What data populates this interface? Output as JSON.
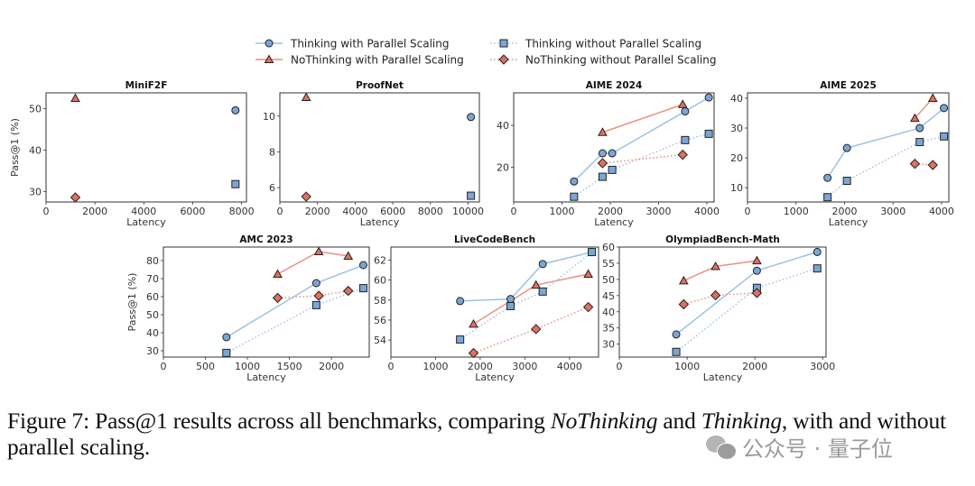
{
  "legend": [
    {
      "key": "twp",
      "label": "Thinking with Parallel Scaling",
      "color": "#7aa6d6",
      "line_color": "#9ec1e3",
      "marker": "circle",
      "style": "solid"
    },
    {
      "key": "nwp",
      "label": "NoThinking with Parallel Scaling",
      "color": "#e07060",
      "line_color": "#ea8f84",
      "marker": "triangle",
      "style": "solid"
    },
    {
      "key": "twop",
      "label": "Thinking without Parallel Scaling",
      "color": "#7aa6d6",
      "line_color": "#9ec1e3",
      "marker": "square",
      "style": "dotted"
    },
    {
      "key": "nwop",
      "label": "NoThinking without Parallel Scaling",
      "color": "#e07060",
      "line_color": "#ea8f84",
      "marker": "diamond",
      "style": "dotted"
    }
  ],
  "chart_data": [
    {
      "type": "line",
      "title": "MiniF2F",
      "xlabel": "Latency",
      "ylabel": "Pass@1 (%)",
      "xlim": [
        0,
        8200
      ],
      "ylim": [
        27.5,
        53.8
      ],
      "xticks": [
        0,
        2000,
        4000,
        6000,
        8000
      ],
      "yticks": [
        30,
        40,
        50
      ],
      "series": [
        {
          "key": "twp",
          "x": [
            7750
          ],
          "y": [
            49.6
          ]
        },
        {
          "key": "nwp",
          "x": [
            1200
          ],
          "y": [
            52.5
          ]
        },
        {
          "key": "twop",
          "x": [
            7750
          ],
          "y": [
            31.8
          ]
        },
        {
          "key": "nwop",
          "x": [
            1200
          ],
          "y": [
            28.6
          ]
        }
      ]
    },
    {
      "type": "line",
      "title": "ProofNet",
      "xlabel": "Latency",
      "ylabel": "",
      "xlim": [
        0,
        10600
      ],
      "ylim": [
        5.2,
        11.3
      ],
      "xticks": [
        0,
        2000,
        4000,
        6000,
        8000,
        10000
      ],
      "yticks": [
        6,
        8,
        10
      ],
      "series": [
        {
          "key": "twp",
          "x": [
            10150
          ],
          "y": [
            9.95
          ]
        },
        {
          "key": "nwp",
          "x": [
            1400
          ],
          "y": [
            11.05
          ]
        },
        {
          "key": "twop",
          "x": [
            10150
          ],
          "y": [
            5.55
          ]
        },
        {
          "key": "nwop",
          "x": [
            1400
          ],
          "y": [
            5.5
          ]
        }
      ]
    },
    {
      "type": "line",
      "title": "AIME 2024",
      "xlabel": "Latency",
      "ylabel": "",
      "xlim": [
        0,
        4150
      ],
      "ylim": [
        3.5,
        55.5
      ],
      "xticks": [
        0,
        1000,
        2000,
        3000,
        4000
      ],
      "yticks": [
        20,
        40
      ],
      "series": [
        {
          "key": "twp",
          "x": [
            1250,
            1840,
            2040,
            3550,
            4040
          ],
          "y": [
            13.3,
            26.7,
            26.7,
            46.7,
            53.3
          ]
        },
        {
          "key": "nwp",
          "x": [
            1840,
            3500
          ],
          "y": [
            36.7,
            50.0
          ]
        },
        {
          "key": "twop",
          "x": [
            1250,
            1840,
            2040,
            3550,
            4040
          ],
          "y": [
            6.0,
            15.5,
            18.8,
            33.0,
            36.0
          ]
        },
        {
          "key": "nwop",
          "x": [
            1840,
            3500
          ],
          "y": [
            22.0,
            26.0
          ]
        }
      ]
    },
    {
      "type": "line",
      "title": "AIME 2025",
      "xlabel": "Latency",
      "ylabel": "",
      "xlim": [
        0,
        4150
      ],
      "ylim": [
        5.2,
        41.8
      ],
      "xticks": [
        0,
        1000,
        2000,
        3000,
        4000
      ],
      "yticks": [
        10,
        20,
        30,
        40
      ],
      "series": [
        {
          "key": "twp",
          "x": [
            1650,
            2050,
            3550,
            4050
          ],
          "y": [
            13.3,
            23.3,
            30.0,
            36.7
          ]
        },
        {
          "key": "nwp",
          "x": [
            3450,
            3820
          ],
          "y": [
            33.3,
            40.0
          ]
        },
        {
          "key": "twop",
          "x": [
            1650,
            2050,
            3550,
            4050
          ],
          "y": [
            6.8,
            12.3,
            25.3,
            27.2
          ]
        },
        {
          "key": "nwop",
          "x": [
            3450,
            3820
          ],
          "y": [
            18.0,
            17.6
          ]
        }
      ]
    },
    {
      "type": "line",
      "title": "AMC 2023",
      "xlabel": "Latency",
      "ylabel": "Pass@1 (%)",
      "xlim": [
        0,
        2450
      ],
      "ylim": [
        26.5,
        87.5
      ],
      "xticks": [
        0,
        500,
        1000,
        1500,
        2000
      ],
      "yticks": [
        30,
        40,
        50,
        60,
        70,
        80
      ],
      "series": [
        {
          "key": "twp",
          "x": [
            750,
            1820,
            2380
          ],
          "y": [
            37.5,
            67.5,
            77.5
          ]
        },
        {
          "key": "nwp",
          "x": [
            1360,
            1850,
            2200
          ],
          "y": [
            72.5,
            85.0,
            82.5
          ]
        },
        {
          "key": "twop",
          "x": [
            750,
            1820,
            2380
          ],
          "y": [
            28.8,
            55.3,
            64.7
          ]
        },
        {
          "key": "nwop",
          "x": [
            1360,
            1850,
            2200
          ],
          "y": [
            59.3,
            60.5,
            63.2
          ]
        }
      ]
    },
    {
      "type": "line",
      "title": "LiveCodeBench",
      "xlabel": "Latency",
      "ylabel": "",
      "xlim": [
        0,
        4650
      ],
      "ylim": [
        52.3,
        63.3
      ],
      "xticks": [
        0,
        1000,
        2000,
        3000,
        4000
      ],
      "yticks": [
        54,
        56,
        58,
        60,
        62
      ],
      "series": [
        {
          "key": "twp",
          "x": [
            1550,
            2680,
            3400,
            4500
          ],
          "y": [
            57.9,
            58.1,
            61.6,
            62.8
          ]
        },
        {
          "key": "nwp",
          "x": [
            1850,
            3250,
            4420
          ],
          "y": [
            55.6,
            59.5,
            60.6
          ]
        },
        {
          "key": "twop",
          "x": [
            1550,
            2680,
            3400,
            4500
          ],
          "y": [
            54.05,
            57.4,
            58.85,
            62.8
          ]
        },
        {
          "key": "nwop",
          "x": [
            1850,
            3250,
            4420
          ],
          "y": [
            52.7,
            55.1,
            57.3
          ]
        }
      ]
    },
    {
      "type": "line",
      "title": "OlympiadBench-Math",
      "xlabel": "Latency",
      "ylabel": "",
      "xlim": [
        0,
        3050
      ],
      "ylim": [
        26.0,
        60.0
      ],
      "xticks": [
        0,
        1000,
        2000,
        3000
      ],
      "yticks": [
        30,
        35,
        40,
        45,
        50,
        55,
        60
      ],
      "series": [
        {
          "key": "twp",
          "x": [
            840,
            2030,
            2920
          ],
          "y": [
            33.0,
            52.7,
            58.5
          ]
        },
        {
          "key": "nwp",
          "x": [
            950,
            1420,
            2030
          ],
          "y": [
            49.6,
            54.0,
            55.8
          ]
        },
        {
          "key": "twop",
          "x": [
            840,
            2030,
            2920
          ],
          "y": [
            27.6,
            47.4,
            53.4
          ]
        },
        {
          "key": "nwop",
          "x": [
            950,
            1420,
            2030
          ],
          "y": [
            42.3,
            45.1,
            45.8
          ]
        }
      ]
    }
  ],
  "caption": {
    "prefix": "Figure 7: Pass@1 results across all benchmarks, comparing ",
    "em1": "NoThinking",
    "mid": " and ",
    "em2": "Thinking",
    "suffix": ", with and without parallel scaling."
  },
  "watermark": {
    "text": "公众号 · 量子位",
    "icon": "wechat-icon"
  }
}
